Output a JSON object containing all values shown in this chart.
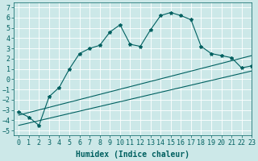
{
  "title": "",
  "xlabel": "Humidex (Indice chaleur)",
  "xlim": [
    -0.5,
    23
  ],
  "ylim": [
    -5.5,
    7.5
  ],
  "xticks": [
    0,
    1,
    2,
    3,
    4,
    5,
    6,
    7,
    8,
    9,
    10,
    11,
    12,
    13,
    14,
    15,
    16,
    17,
    18,
    19,
    20,
    21,
    22,
    23
  ],
  "yticks": [
    -5,
    -4,
    -3,
    -2,
    -1,
    0,
    1,
    2,
    3,
    4,
    5,
    6,
    7
  ],
  "bg_color": "#cce8e8",
  "line_color": "#006060",
  "grid_color": "#b0d8d8",
  "line1_x": [
    0,
    1,
    2,
    3,
    4,
    5,
    6,
    7,
    8,
    9,
    10,
    11,
    12,
    13,
    14,
    15,
    16,
    17,
    18,
    19,
    20,
    21,
    22,
    23
  ],
  "line1_y": [
    -3.2,
    -3.7,
    -4.5,
    -1.7,
    -0.8,
    1.0,
    2.5,
    3.0,
    3.3,
    4.6,
    5.3,
    3.4,
    3.2,
    4.8,
    6.2,
    6.5,
    6.2,
    5.8,
    3.2,
    2.5,
    2.3,
    2.1,
    1.1,
    1.3
  ],
  "line2_x": [
    0,
    23
  ],
  "line2_y": [
    -3.5,
    2.3
  ],
  "line3_x": [
    0,
    23
  ],
  "line3_y": [
    -4.5,
    0.8
  ],
  "marker_style": "*",
  "marker_size": 3,
  "lw": 0.8,
  "font_size": 6
}
